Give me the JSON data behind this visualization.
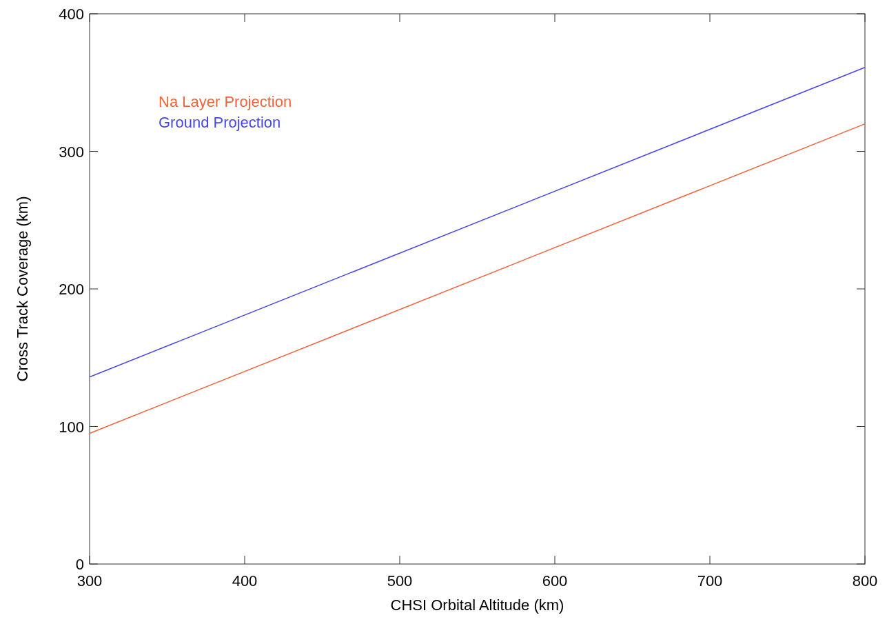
{
  "chart_data": {
    "type": "line",
    "xlabel": "CHSI Orbital Altitude (km)",
    "ylabel": "Cross Track Coverage (km)",
    "x": [
      300,
      800
    ],
    "series": [
      {
        "name": "Na Layer Projection",
        "color": "#f0643c",
        "values": [
          95,
          320
        ]
      },
      {
        "name": "Ground Projection",
        "color": "#4646e6",
        "values": [
          136,
          361
        ]
      }
    ],
    "xlim": [
      300,
      800
    ],
    "xticks": [
      300,
      400,
      500,
      600,
      700,
      800
    ],
    "ylim": [
      0,
      400
    ],
    "yticks": [
      0,
      100,
      200,
      300,
      400
    ],
    "legend": "top left",
    "grid": false,
    "marker": "none",
    "line_style": "solid"
  }
}
